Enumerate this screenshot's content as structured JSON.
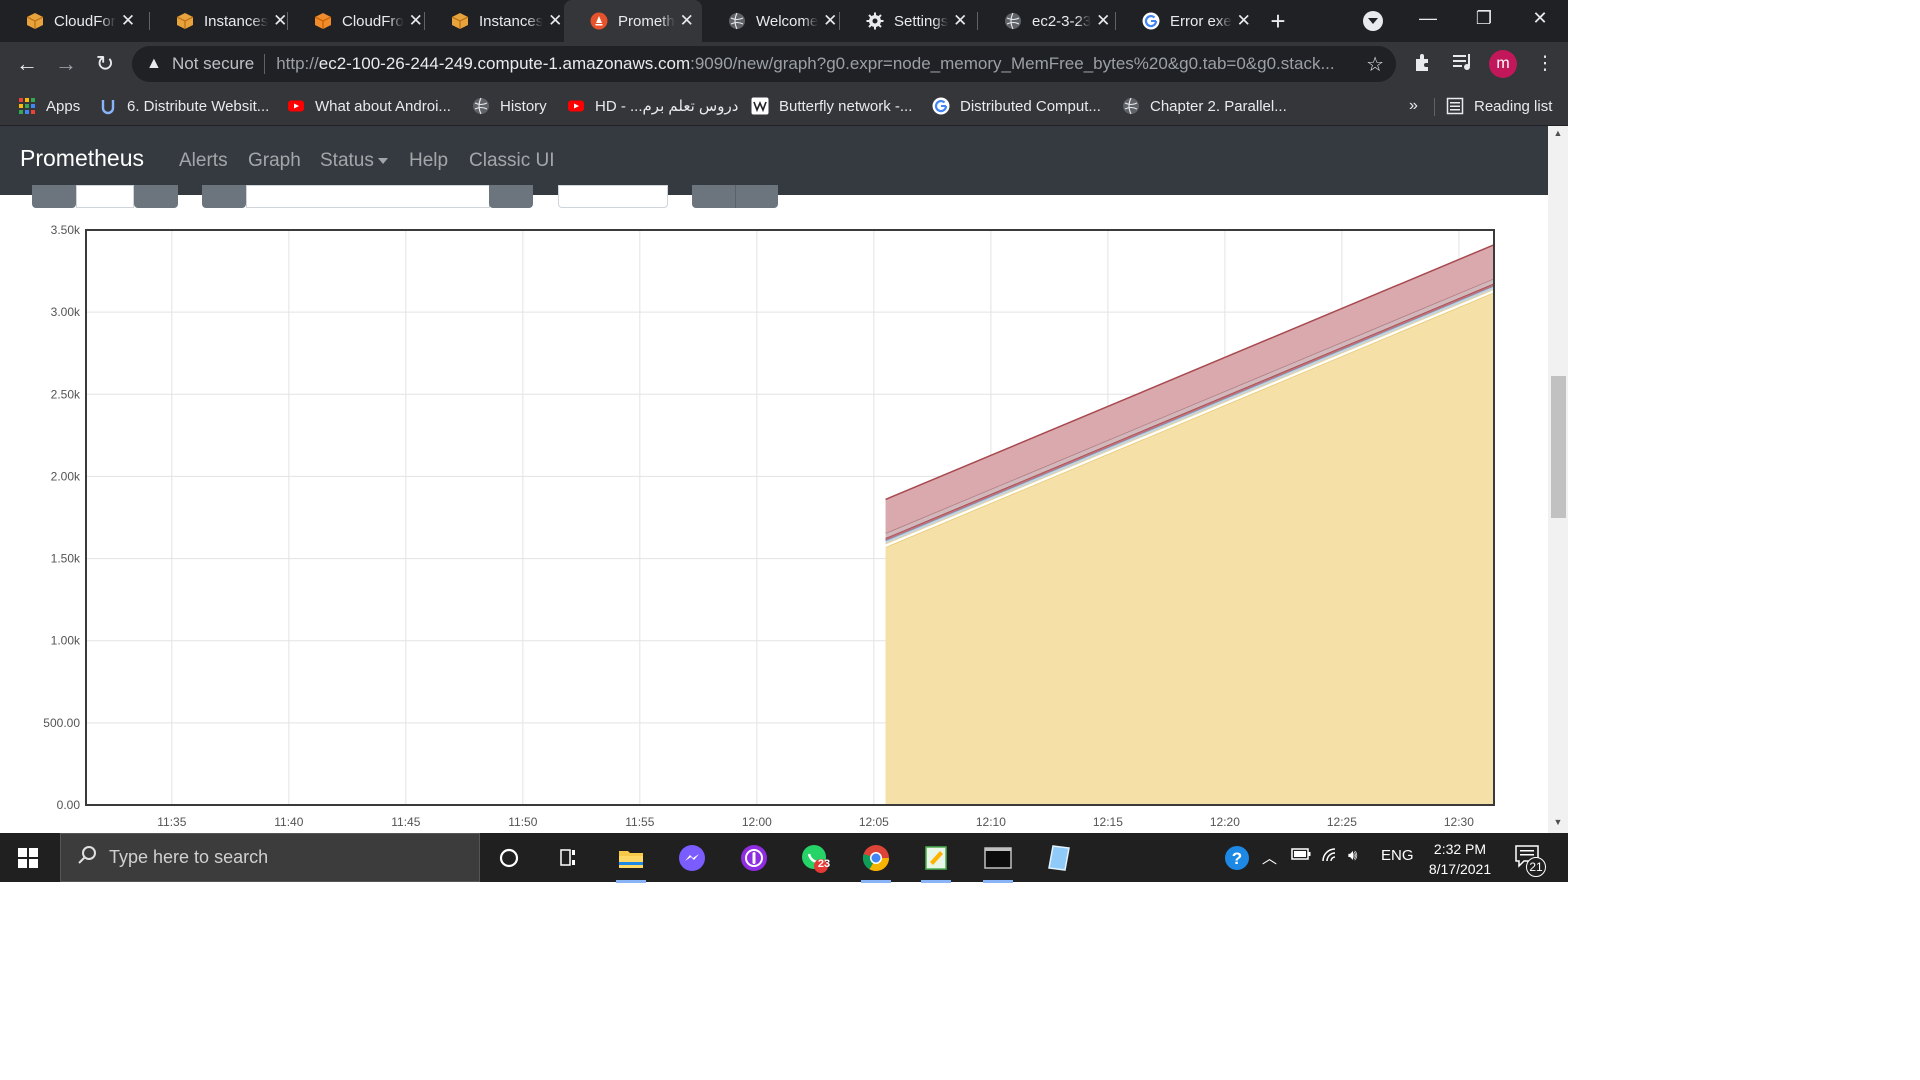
{
  "browser": {
    "tabs": [
      {
        "title": "CloudFor",
        "icon": "aws-box-icon",
        "active": false
      },
      {
        "title": "Instances",
        "icon": "aws-box-icon",
        "active": false
      },
      {
        "title": "CloudFro",
        "icon": "aws-cube-icon",
        "active": false
      },
      {
        "title": "Instances",
        "icon": "aws-box-icon",
        "active": false
      },
      {
        "title": "Prometh",
        "icon": "prometheus-icon",
        "active": true
      },
      {
        "title": "Welcome",
        "icon": "globe-icon",
        "active": false
      },
      {
        "title": "Settings",
        "icon": "gear-icon",
        "active": false
      },
      {
        "title": "ec2-3-23",
        "icon": "globe-icon",
        "active": false
      },
      {
        "title": "Error exe",
        "icon": "google-icon",
        "active": false
      }
    ],
    "close_glyph": "✕",
    "new_tab_glyph": "+",
    "security_label": "Not secure",
    "url_scheme": "http://",
    "url_host": "ec2-100-26-244-249.compute-1.amazonaws.com",
    "url_rest": ":9090/new/graph?g0.expr=node_memory_MemFree_bytes%20&g0.tab=0&g0.stack...",
    "avatar_letter": "m",
    "bookmarks": [
      {
        "label": "Apps",
        "icon": "apps-grid-icon"
      },
      {
        "label": "6. Distribute Websit...",
        "icon": "udemy-icon"
      },
      {
        "label": "What about Androi...",
        "icon": "youtube-icon"
      },
      {
        "label": "History",
        "icon": "globe-icon"
      },
      {
        "label": "HD - ...دروس تعلم برم",
        "icon": "youtube-icon"
      },
      {
        "label": "Butterfly network -...",
        "icon": "wikipedia-icon"
      },
      {
        "label": "Distributed Comput...",
        "icon": "google-icon"
      },
      {
        "label": "Chapter 2. Parallel...",
        "icon": "globe-icon"
      }
    ],
    "bookmarks_overflow": "»",
    "reading_list": "Reading list"
  },
  "prometheus": {
    "brand": "Prometheus",
    "nav": [
      "Alerts",
      "Graph",
      "Status",
      "Help",
      "Classic UI"
    ]
  },
  "chart_data": {
    "type": "area",
    "stacked": true,
    "title": "",
    "xlabel": "",
    "ylabel": "",
    "x_ticks": [
      "11:35",
      "11:40",
      "11:45",
      "11:50",
      "11:55",
      "12:00",
      "12:05",
      "12:10",
      "12:15",
      "12:20",
      "12:25",
      "12:30"
    ],
    "y_ticks": [
      "0.00",
      "500.00",
      "1.00k",
      "1.50k",
      "2.00k",
      "2.50k",
      "3.00k",
      "3.50k"
    ],
    "ylim": [
      0,
      3500
    ],
    "xlim": [
      "11:31:20",
      "12:31:30"
    ],
    "grid": true,
    "series": [
      {
        "color": "#f5e0a8",
        "line": "#e8c870",
        "x": [
          "12:05:30",
          "12:31:30"
        ],
        "values": [
          1570,
          3120
        ]
      },
      {
        "color": "#ffffff",
        "line": "#f0d890",
        "x": [
          "12:05:30",
          "12:31:30"
        ],
        "values": [
          20,
          20
        ]
      },
      {
        "color": "#c7d3dd",
        "line": "#7aa0c4",
        "x": [
          "12:05:30",
          "12:31:30"
        ],
        "values": [
          20,
          20
        ]
      },
      {
        "color": "#c56e73",
        "line": "#a04c55",
        "x": [
          "12:05:30",
          "12:31:30"
        ],
        "values": [
          15,
          15
        ]
      },
      {
        "color": "#d2b8bb",
        "line": "#b07a80",
        "x": [
          "12:05:30",
          "12:31:30"
        ],
        "values": [
          30,
          30
        ]
      },
      {
        "color": "#d9a9ad",
        "line": "#a8494f",
        "x": [
          "12:05:30",
          "12:31:30"
        ],
        "values": [
          205,
          205
        ]
      }
    ]
  },
  "taskbar": {
    "search_placeholder": "Type here to search",
    "apps": [
      {
        "name": "cortana-icon"
      },
      {
        "name": "task-view-icon"
      },
      {
        "name": "file-explorer-icon"
      },
      {
        "name": "messenger-icon"
      },
      {
        "name": "podcast-icon"
      },
      {
        "name": "whatsapp-icon",
        "badge": "23"
      },
      {
        "name": "chrome-icon"
      },
      {
        "name": "notepad-icon"
      },
      {
        "name": "terminal-icon"
      },
      {
        "name": "tablet-icon"
      }
    ],
    "tray_language": "ENG",
    "time": "2:32 PM",
    "date": "8/17/2021",
    "notifications": "21"
  }
}
